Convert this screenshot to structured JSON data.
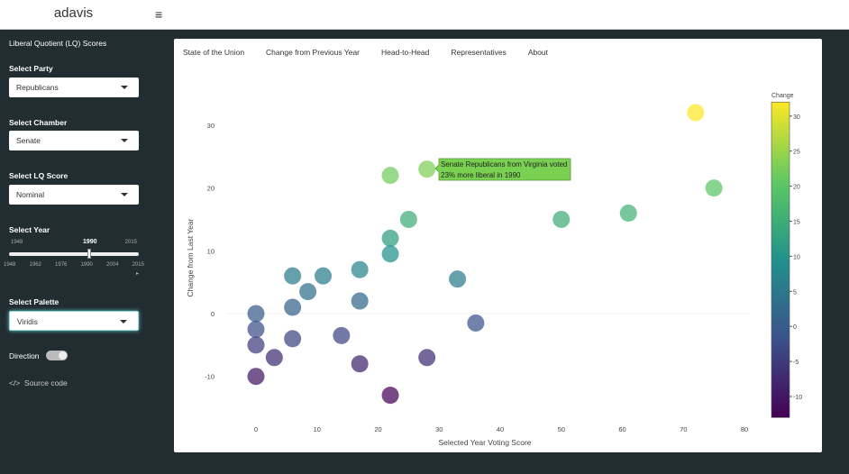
{
  "app": {
    "title": "adavis",
    "menu_icon": "hamburger-icon"
  },
  "sidebar": {
    "title": "Liberal Quotient (LQ) Scores",
    "party": {
      "label": "Select Party",
      "value": "Republicans"
    },
    "chamber": {
      "label": "Select Chamber",
      "value": "Senate"
    },
    "lq": {
      "label": "Select LQ Score",
      "value": "Nominal"
    },
    "year": {
      "label": "Select Year",
      "min": "1948",
      "max": "2015",
      "value": "1990",
      "ticks": [
        "1948",
        "1962",
        "1976",
        "1990",
        "2004",
        "2015"
      ],
      "play": "▸"
    },
    "palette": {
      "label": "Select Palette",
      "value": "Viridis"
    },
    "direction": {
      "label": "Direction",
      "on": true
    },
    "source": {
      "icon": "</>",
      "label": "Source code"
    }
  },
  "tabs": [
    "State of the Union",
    "Change from Previous Year",
    "Head-to-Head",
    "Representatives",
    "About"
  ],
  "chart_data": {
    "type": "scatter",
    "xlabel": "Selected Year Voting Score",
    "ylabel": "Change from Last Year",
    "xlim": [
      -4,
      81
    ],
    "ylim": [
      -18,
      35
    ],
    "xticks": [
      0,
      10,
      20,
      30,
      40,
      50,
      60,
      70,
      80
    ],
    "yticks": [
      -10,
      0,
      10,
      20,
      30
    ],
    "colorbar": {
      "title": "Change",
      "range": [
        -13,
        32
      ],
      "ticks": [
        -10,
        -5,
        0,
        5,
        10,
        15,
        20,
        25,
        30
      ],
      "palette": "viridis"
    },
    "points": [
      [
        0,
        0
      ],
      [
        0,
        -2.5
      ],
      [
        0,
        -5
      ],
      [
        0,
        -10
      ],
      [
        3,
        -7
      ],
      [
        6,
        6
      ],
      [
        6,
        1
      ],
      [
        6,
        -4
      ],
      [
        8.5,
        3.5
      ],
      [
        11,
        6
      ],
      [
        14,
        -3.5
      ],
      [
        17,
        7
      ],
      [
        17,
        2
      ],
      [
        17,
        -8
      ],
      [
        22,
        22
      ],
      [
        22,
        12
      ],
      [
        22,
        9.5
      ],
      [
        22,
        -13
      ],
      [
        25,
        15
      ],
      [
        28,
        23
      ],
      [
        28,
        -7
      ],
      [
        33,
        5.5
      ],
      [
        36,
        -1.5
      ],
      [
        50,
        15
      ],
      [
        61,
        16
      ],
      [
        72,
        32
      ],
      [
        75,
        20
      ]
    ],
    "tooltip": {
      "line1": "Senate Republicans from Virginia voted",
      "line2": " 23% more liberal in 1990"
    }
  }
}
